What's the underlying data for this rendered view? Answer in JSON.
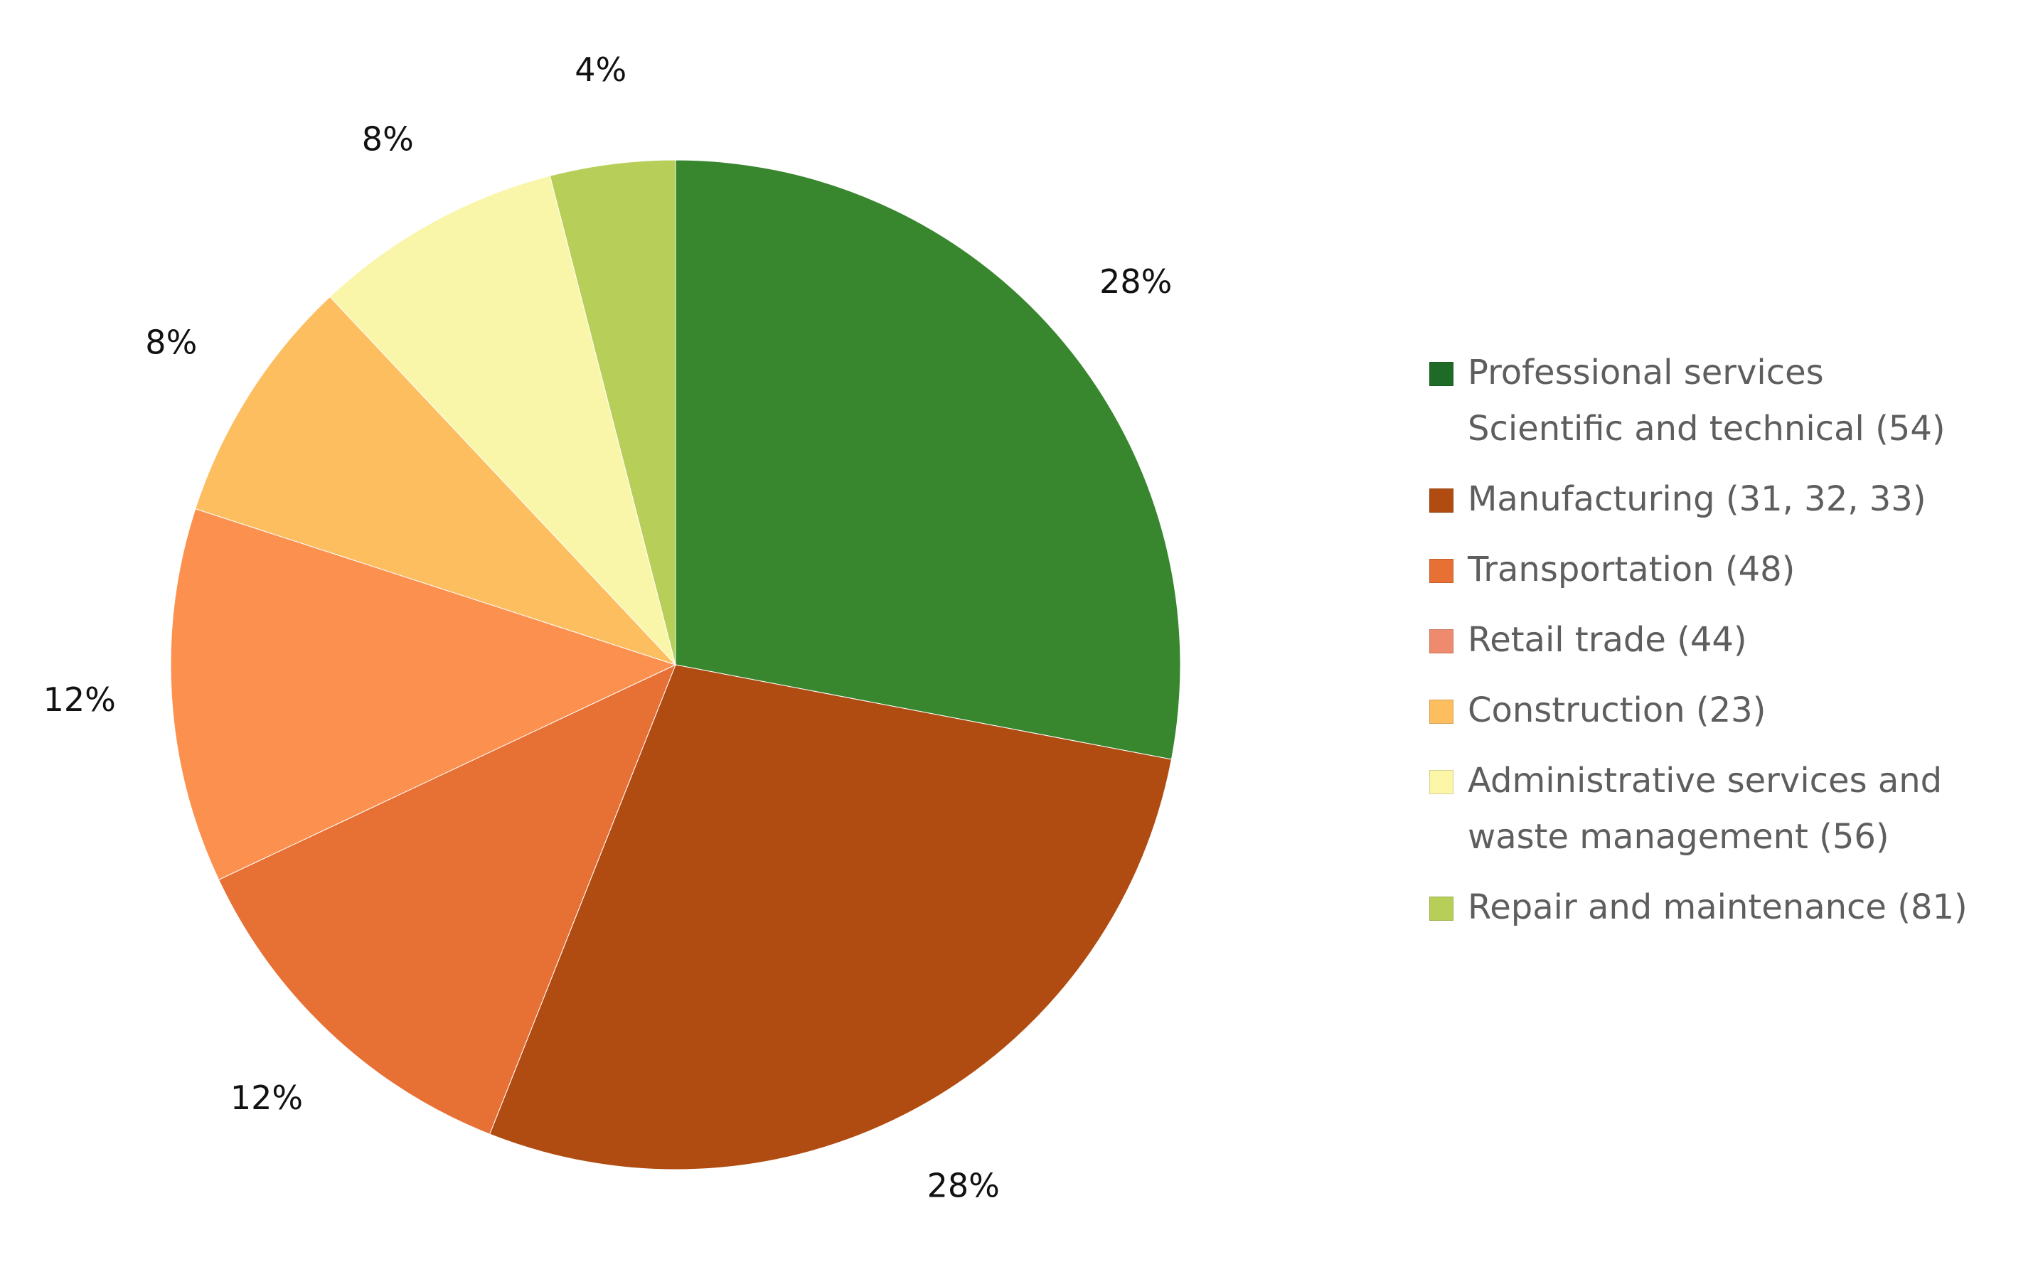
{
  "chart_data": {
    "type": "pie",
    "start_angle_deg": 0,
    "direction": "clockwise",
    "slices": [
      {
        "label_lines": [
          "Professional services",
          "Scientific and technical (54)"
        ],
        "value": 28,
        "label": "28%",
        "color": "#38872f"
      },
      {
        "label_lines": [
          "Manufacturing (31, 32, 33)"
        ],
        "value": 28,
        "label": "28%",
        "color": "#b04c12"
      },
      {
        "label_lines": [
          "Transportation (48)"
        ],
        "value": 12,
        "label": "12%",
        "color": "#e77035"
      },
      {
        "label_lines": [
          "Retail trade (44)"
        ],
        "value": 12,
        "label": "12%",
        "color": "#fc914f"
      },
      {
        "label_lines": [
          "Construction (23)"
        ],
        "value": 8,
        "label": "8%",
        "color": "#fdbe60"
      },
      {
        "label_lines": [
          "Administrative services and",
          "waste management (56)"
        ],
        "value": 8,
        "label": "8%",
        "color": "#f9f6a9"
      },
      {
        "label_lines": [
          "Repair and maintenance (81)"
        ],
        "value": 4,
        "label": "4%",
        "color": "#b7cf59"
      }
    ],
    "legend": {
      "placement": "right",
      "items": [
        {
          "lines": [
            "Professional services",
            "Scientific and technical (54)"
          ],
          "color": "#1e6b28"
        },
        {
          "lines": [
            "Manufacturing (31, 32, 33)"
          ],
          "color": "#b04c12"
        },
        {
          "lines": [
            "Transportation (48)"
          ],
          "color": "#e77035"
        },
        {
          "lines": [
            "Retail trade (44)"
          ],
          "color": "#ee8a6e"
        },
        {
          "lines": [
            "Construction (23)"
          ],
          "color": "#fdbe60"
        },
        {
          "lines": [
            "Administrative services and",
            "waste management (56)"
          ],
          "color": "#fcf6a9"
        },
        {
          "lines": [
            "Repair and maintenance (81)"
          ],
          "color": "#b7cf59"
        }
      ]
    }
  }
}
